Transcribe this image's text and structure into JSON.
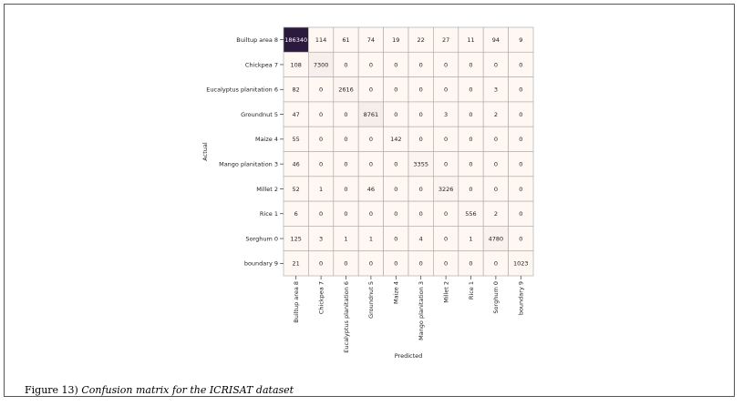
{
  "chart_data": {
    "type": "heatmap",
    "xlabel": "Predicted",
    "ylabel": "Actual",
    "row_labels": [
      "Builtup area 8",
      "Chickpea 7",
      "Eucalyptus planitation 6",
      "Groundnut 5",
      "Maize 4",
      "Mango planitation 3",
      "Millet 2",
      "Rice 1",
      "Sorghum 0",
      "boundary 9"
    ],
    "col_labels": [
      "Builtup area 8",
      "Chickpea 7",
      "Eucalyptus planitation 6",
      "Groundnut 5",
      "Maize 4",
      "Mango planitation 3",
      "Millet 2",
      "Rice 1",
      "Sorghum 0",
      "boundary 9"
    ],
    "values": [
      [
        186340,
        114,
        61,
        74,
        19,
        22,
        27,
        11,
        94,
        9
      ],
      [
        108,
        7300,
        0,
        0,
        0,
        0,
        0,
        0,
        0,
        0
      ],
      [
        82,
        0,
        2616,
        0,
        0,
        0,
        0,
        0,
        3,
        0
      ],
      [
        47,
        0,
        0,
        8761,
        0,
        0,
        3,
        0,
        2,
        0
      ],
      [
        55,
        0,
        0,
        0,
        142,
        0,
        0,
        0,
        0,
        0
      ],
      [
        46,
        0,
        0,
        0,
        0,
        3355,
        0,
        0,
        0,
        0
      ],
      [
        52,
        1,
        0,
        46,
        0,
        0,
        3226,
        0,
        0,
        0
      ],
      [
        6,
        0,
        0,
        0,
        0,
        0,
        0,
        556,
        2,
        0
      ],
      [
        125,
        3,
        1,
        1,
        0,
        4,
        0,
        1,
        4780,
        0
      ],
      [
        21,
        0,
        0,
        0,
        0,
        0,
        0,
        0,
        0,
        1023
      ]
    ],
    "colors": {
      "high": "#2b1a3d",
      "low": "#fff8f2",
      "grid": "#b0b0b0"
    },
    "grid": true,
    "legend": "none"
  },
  "caption": {
    "figure_label": "Figure 13)",
    "text": "Confusion matrix for the ICRISAT dataset"
  }
}
